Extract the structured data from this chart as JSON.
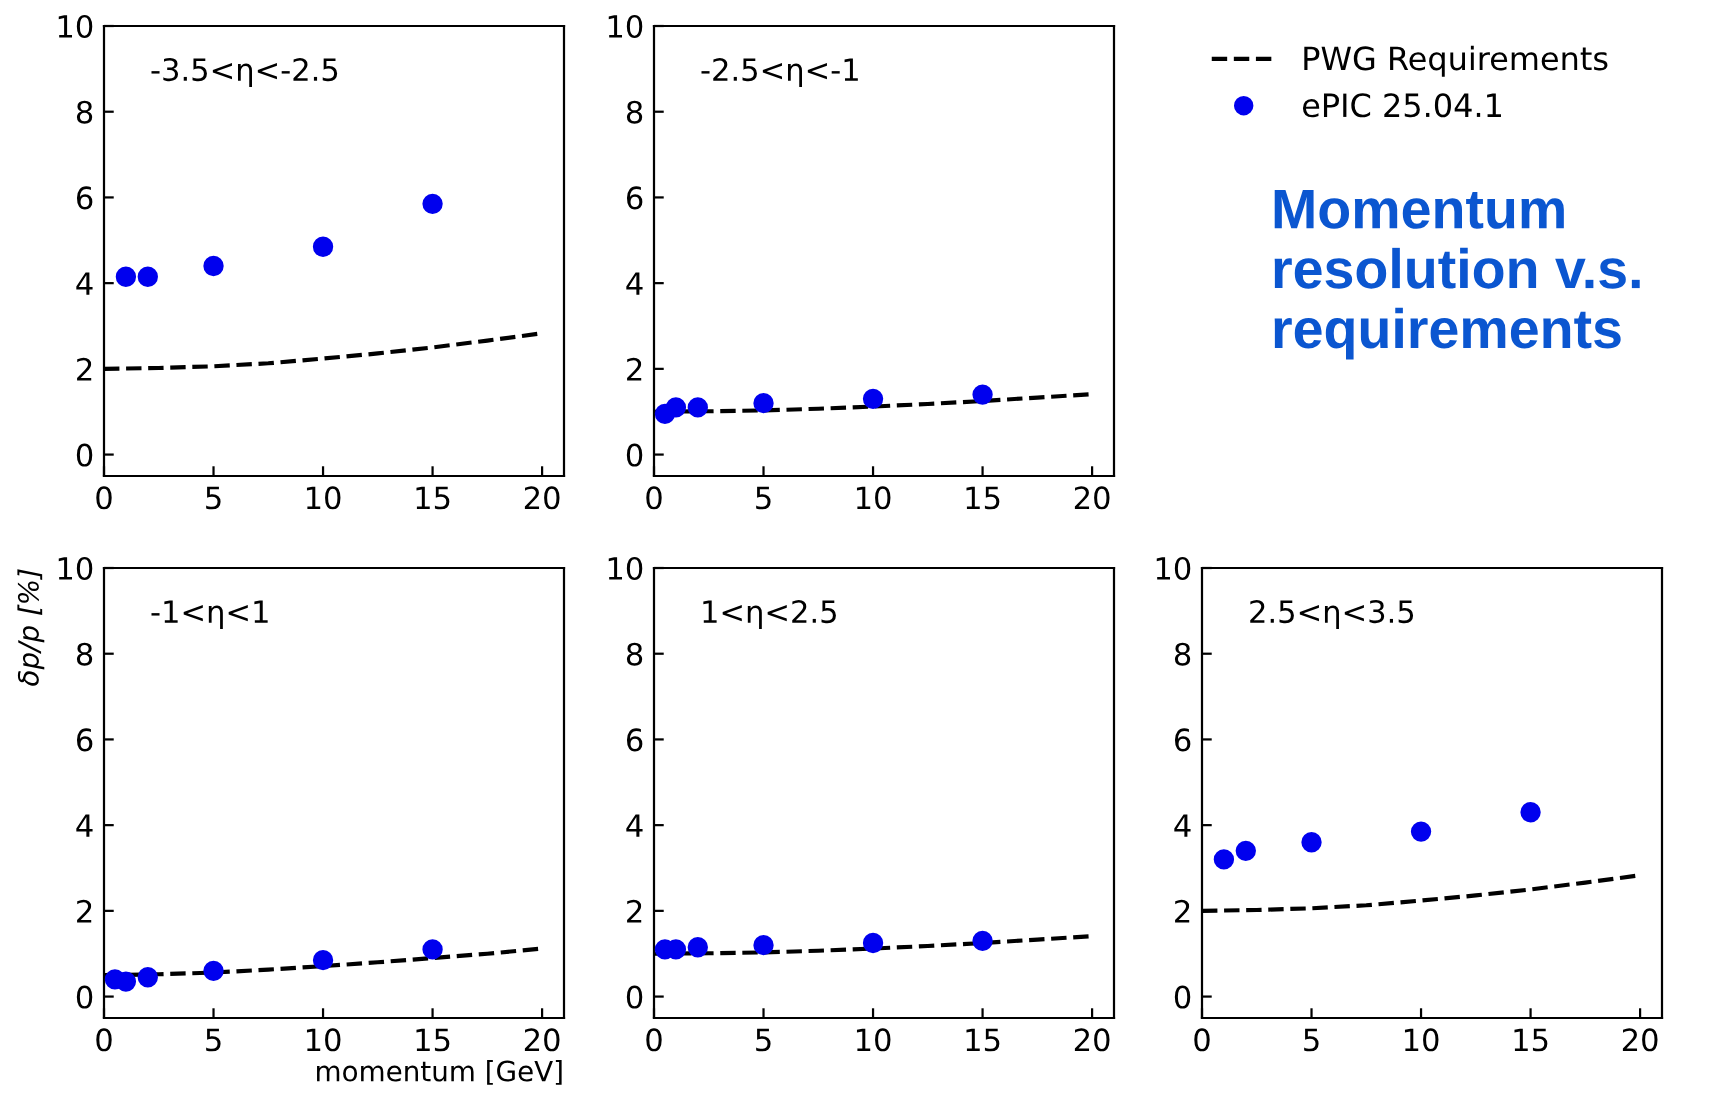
{
  "chart_data": [
    {
      "type": "line",
      "annotations": [
        "-3.5<η<-2.5"
      ],
      "xlim": [
        0,
        21
      ],
      "ylim": [
        -0.5,
        10
      ],
      "xticks": [
        0,
        5,
        10,
        15,
        20
      ],
      "yticks": [
        0,
        2,
        4,
        6,
        8,
        10
      ],
      "grid": false,
      "legend": false,
      "series": [
        {
          "type": "line",
          "line_style": "dashed",
          "marker": "none",
          "color": "#000000",
          "x": [
            0,
            2.5,
            5,
            7.5,
            10,
            12.5,
            15,
            17.5,
            20
          ],
          "values": [
            2.0,
            2.02,
            2.06,
            2.13,
            2.24,
            2.36,
            2.5,
            2.66,
            2.83
          ]
        },
        {
          "type": "scatter",
          "marker": "circle",
          "color": "#0000ee",
          "x": [
            1,
            2,
            5,
            10,
            15
          ],
          "values": [
            4.15,
            4.15,
            4.4,
            4.85,
            5.85
          ]
        }
      ]
    },
    {
      "type": "line",
      "annotations": [
        "-2.5<η<-1"
      ],
      "xlim": [
        0,
        21
      ],
      "ylim": [
        -0.5,
        10
      ],
      "xticks": [
        0,
        5,
        10,
        15,
        20
      ],
      "yticks": [
        0,
        2,
        4,
        6,
        8,
        10
      ],
      "grid": false,
      "legend": "right",
      "series": [
        {
          "name": "PWG Requirements",
          "type": "line",
          "line_style": "dashed",
          "marker": "none",
          "color": "#000000",
          "x": [
            0,
            2.5,
            5,
            7.5,
            10,
            12.5,
            15,
            17.5,
            20
          ],
          "values": [
            1.0,
            1.01,
            1.03,
            1.07,
            1.12,
            1.18,
            1.25,
            1.33,
            1.41
          ]
        },
        {
          "name": "ePIC 25.04.1",
          "type": "scatter",
          "marker": "circle",
          "color": "#0000ee",
          "x": [
            0.5,
            1,
            2,
            5,
            10,
            15
          ],
          "values": [
            0.95,
            1.1,
            1.1,
            1.2,
            1.3,
            1.4
          ]
        }
      ]
    },
    {
      "type": "line",
      "annotations": [
        "-1<η<1"
      ],
      "xlabel": "momentum [GeV]",
      "ylabel": "δp/p [%]",
      "xlim": [
        0,
        21
      ],
      "ylim": [
        -0.5,
        10
      ],
      "xticks": [
        0,
        5,
        10,
        15,
        20
      ],
      "yticks": [
        0,
        2,
        4,
        6,
        8,
        10
      ],
      "grid": false,
      "legend": false,
      "series": [
        {
          "type": "line",
          "line_style": "dashed",
          "marker": "none",
          "color": "#000000",
          "x": [
            0,
            2.5,
            5,
            7.5,
            10,
            12.5,
            15,
            17.5,
            20
          ],
          "values": [
            0.5,
            0.52,
            0.56,
            0.63,
            0.71,
            0.8,
            0.9,
            1.0,
            1.12
          ]
        },
        {
          "type": "scatter",
          "marker": "circle",
          "color": "#0000ee",
          "x": [
            0.5,
            1,
            2,
            5,
            10,
            15
          ],
          "values": [
            0.4,
            0.35,
            0.45,
            0.6,
            0.85,
            1.1
          ]
        }
      ]
    },
    {
      "type": "line",
      "annotations": [
        "1<η<2.5"
      ],
      "xlim": [
        0,
        21
      ],
      "ylim": [
        -0.5,
        10
      ],
      "xticks": [
        0,
        5,
        10,
        15,
        20
      ],
      "yticks": [
        0,
        2,
        4,
        6,
        8,
        10
      ],
      "grid": false,
      "legend": false,
      "series": [
        {
          "type": "line",
          "line_style": "dashed",
          "marker": "none",
          "color": "#000000",
          "x": [
            0,
            2.5,
            5,
            7.5,
            10,
            12.5,
            15,
            17.5,
            20
          ],
          "values": [
            1.0,
            1.01,
            1.03,
            1.07,
            1.12,
            1.18,
            1.25,
            1.33,
            1.41
          ]
        },
        {
          "type": "scatter",
          "marker": "circle",
          "color": "#0000ee",
          "x": [
            0.5,
            1,
            2,
            5,
            10,
            15
          ],
          "values": [
            1.1,
            1.1,
            1.15,
            1.2,
            1.25,
            1.3
          ]
        }
      ]
    },
    {
      "type": "line",
      "annotations": [
        "2.5<η<3.5"
      ],
      "xlim": [
        0,
        21
      ],
      "ylim": [
        -0.5,
        10
      ],
      "xticks": [
        0,
        5,
        10,
        15,
        20
      ],
      "yticks": [
        0,
        2,
        4,
        6,
        8,
        10
      ],
      "grid": false,
      "legend": false,
      "series": [
        {
          "type": "line",
          "line_style": "dashed",
          "marker": "none",
          "color": "#000000",
          "x": [
            0,
            2.5,
            5,
            7.5,
            10,
            12.5,
            15,
            17.5,
            20
          ],
          "values": [
            2.0,
            2.02,
            2.06,
            2.13,
            2.24,
            2.36,
            2.5,
            2.66,
            2.83
          ]
        },
        {
          "type": "scatter",
          "marker": "circle",
          "color": "#0000ee",
          "x": [
            1,
            2,
            5,
            10,
            15
          ],
          "values": [
            3.2,
            3.4,
            3.6,
            3.85,
            4.3
          ]
        }
      ]
    },
    {
      "type": "other",
      "title": "Momentum resolution v.s. requirements"
    }
  ]
}
